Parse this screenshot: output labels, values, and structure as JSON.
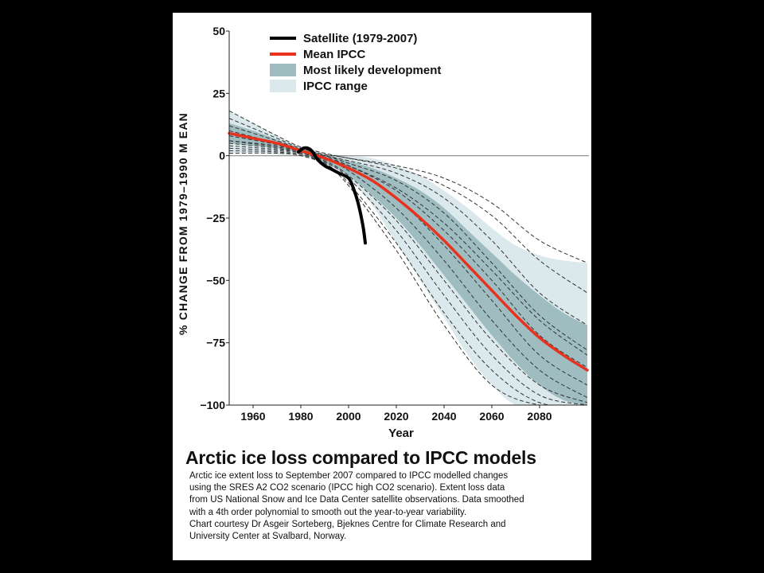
{
  "colors": {
    "background": "#000000",
    "panel": "#ffffff",
    "satellite": "#000000",
    "mean": "#e8321e",
    "likely_band": "#9fbcc1",
    "range_band": "#dbe9ec"
  },
  "caption": {
    "title": "Arctic ice loss compared to IPCC models",
    "body": "Arctic ice extent loss to September 2007 compared to IPCC modelled changes\nusing the SRES A2 CO2 scenario (IPCC high CO2 scenario). Extent loss data\nfrom US National Snow and Ice Data Center satellite observations. Data smoothed\nwith a 4th order polynomial to smooth out the year-to-year variability.\nChart courtesy Dr Asgeir Sorteberg, Bjeknes Centre for Climate Research and\nUniversity Center at Svalbard, Norway."
  },
  "chart_data": {
    "type": "line",
    "title": "",
    "xlabel": "Year",
    "ylabel": "% CHANGE FROM 1979–1990 M EAN",
    "xlim": [
      1950,
      2100
    ],
    "ylim": [
      -100,
      50
    ],
    "x_ticks": [
      1960,
      1980,
      2000,
      2020,
      2040,
      2060,
      2080
    ],
    "y_ticks": [
      {
        "value": 50,
        "label": "50"
      },
      {
        "value": 25,
        "label": "25"
      },
      {
        "value": 0,
        "label": "0"
      },
      {
        "value": -25,
        "label": "−25"
      },
      {
        "value": -50,
        "label": "−50"
      },
      {
        "value": -75,
        "label": "−75"
      },
      {
        "value": -100,
        "label": "−100"
      }
    ],
    "zero_line": true,
    "legend": {
      "placement": "top",
      "entries": [
        {
          "label": "Satellite (1979-2007)",
          "kind": "line",
          "color": "#000000"
        },
        {
          "label": "Mean IPCC",
          "kind": "line",
          "color": "#e8321e"
        },
        {
          "label": "Most likely development",
          "kind": "patch",
          "color": "#9fbcc1"
        },
        {
          "label": "IPCC range",
          "kind": "patch",
          "color": "#dbe9ec"
        }
      ]
    },
    "satellite": {
      "x": [
        1979,
        1981,
        1983,
        1985,
        1987,
        1990,
        1993,
        1996,
        2000,
        2002,
        2004,
        2006,
        2007
      ],
      "y": [
        1.5,
        3,
        3,
        1.5,
        -1.5,
        -4,
        -5.5,
        -7,
        -9,
        -13,
        -19,
        -28,
        -35
      ]
    },
    "mean": {
      "x": [
        1950,
        1960,
        1970,
        1980,
        1990,
        2000,
        2010,
        2020,
        2030,
        2040,
        2050,
        2060,
        2070,
        2080,
        2090,
        2100
      ],
      "y": [
        9,
        7,
        5,
        2,
        -1,
        -5,
        -10,
        -17,
        -25,
        -34,
        -44,
        -54,
        -64,
        -73,
        -80,
        -86
      ]
    },
    "likely_upper": {
      "x": [
        1950,
        1960,
        1970,
        1980,
        1990,
        2000,
        2010,
        2020,
        2030,
        2040,
        2050,
        2060,
        2070,
        2080,
        2090,
        2100
      ],
      "y": [
        13,
        10,
        6.5,
        3,
        0.5,
        -2,
        -5,
        -9,
        -14,
        -21,
        -30,
        -39,
        -48,
        -56,
        -63,
        -68
      ]
    },
    "likely_lower": {
      "x": [
        1950,
        1960,
        1970,
        1980,
        1990,
        2000,
        2010,
        2020,
        2030,
        2040,
        2050,
        2060,
        2070,
        2080,
        2090,
        2100
      ],
      "y": [
        5,
        4,
        3,
        1,
        -3,
        -8,
        -16,
        -25,
        -36,
        -48,
        -60,
        -72,
        -83,
        -92,
        -98,
        -100
      ]
    },
    "range_upper": {
      "x": [
        1950,
        1960,
        1970,
        1980,
        1990,
        2000,
        2010,
        2020,
        2030,
        2040,
        2050,
        2060,
        2070,
        2080,
        2090,
        2100
      ],
      "y": [
        18,
        13,
        8,
        3.5,
        1,
        0,
        -1,
        -4,
        -8,
        -14,
        -21,
        -29,
        -36,
        -40,
        -42,
        -43
      ]
    },
    "range_lower": {
      "x": [
        1950,
        1960,
        1970,
        1980,
        1990,
        2000,
        2010,
        2020,
        2030,
        2040,
        2050,
        2060,
        2070,
        2080,
        2090,
        2100
      ],
      "y": [
        1,
        1,
        0.5,
        0,
        -3,
        -9,
        -20,
        -35,
        -50,
        -65,
        -80,
        -92,
        -100,
        -100,
        -100,
        -100
      ]
    },
    "models": [
      {
        "x": [
          1950,
          1970,
          1980,
          1990,
          2000,
          2020,
          2040,
          2060,
          2080,
          2100
        ],
        "y": [
          18,
          8,
          3.5,
          1,
          -1,
          -4,
          -9,
          -19,
          -34,
          -43
        ]
      },
      {
        "x": [
          1950,
          1970,
          1980,
          1990,
          2000,
          2020,
          2040,
          2060,
          2080,
          2100
        ],
        "y": [
          15,
          7,
          3,
          0.5,
          -1,
          -5,
          -12,
          -24,
          -42,
          -55
        ]
      },
      {
        "x": [
          1950,
          1970,
          1980,
          1990,
          2000,
          2020,
          2040,
          2060,
          2080,
          2100
        ],
        "y": [
          12,
          6,
          2.5,
          0,
          -2,
          -7,
          -17,
          -34,
          -55,
          -68
        ]
      },
      {
        "x": [
          1950,
          1970,
          1980,
          1990,
          2000,
          2020,
          2040,
          2060,
          2080,
          2100
        ],
        "y": [
          10,
          5,
          2,
          0,
          -3,
          -10,
          -23,
          -43,
          -64,
          -78
        ]
      },
      {
        "x": [
          1950,
          1970,
          1980,
          1990,
          2000,
          2020,
          2040,
          2060,
          2080,
          2100
        ],
        "y": [
          8,
          4.5,
          2,
          -0.5,
          -4,
          -14,
          -30,
          -50,
          -72,
          -85
        ]
      },
      {
        "x": [
          1950,
          1970,
          1980,
          1990,
          2000,
          2020,
          2040,
          2060,
          2080,
          2100
        ],
        "y": [
          6,
          4,
          1.5,
          -1,
          -5,
          -17,
          -36,
          -58,
          -80,
          -92
        ]
      },
      {
        "x": [
          1950,
          1970,
          1980,
          1990,
          2000,
          2020,
          2040,
          2060,
          2080,
          2100
        ],
        "y": [
          5,
          3,
          1,
          -1.5,
          -6,
          -21,
          -42,
          -66,
          -86,
          -97
        ]
      },
      {
        "x": [
          1950,
          1970,
          1980,
          1990,
          2000,
          2020,
          2040,
          2060,
          2080,
          2100
        ],
        "y": [
          4,
          2.5,
          1,
          -2,
          -8,
          -26,
          -50,
          -74,
          -92,
          -99
        ]
      },
      {
        "x": [
          1950,
          1970,
          1980,
          1990,
          2000,
          2020,
          2040,
          2060,
          2080,
          2100
        ],
        "y": [
          3,
          2,
          0.5,
          -2.5,
          -9,
          -30,
          -56,
          -80,
          -96,
          -100
        ]
      },
      {
        "x": [
          1950,
          1970,
          1980,
          1990,
          2000,
          2020,
          2040,
          2060,
          2080,
          2100
        ],
        "y": [
          2,
          1.5,
          0,
          -3,
          -11,
          -35,
          -63,
          -86,
          -99,
          -100
        ]
      },
      {
        "x": [
          1950,
          1970,
          1980,
          1990,
          2000,
          2020,
          2040,
          2060,
          2080,
          2100
        ],
        "y": [
          1,
          1,
          0,
          -3.5,
          -12,
          -38,
          -68,
          -92,
          -100,
          -100
        ]
      },
      {
        "x": [
          1950,
          1970,
          1980,
          1990,
          2000,
          2020,
          2040,
          2060,
          2080,
          2100
        ],
        "y": [
          6,
          3.5,
          1.5,
          -1,
          -4,
          -13,
          -27,
          -46,
          -66,
          -80
        ]
      }
    ]
  }
}
